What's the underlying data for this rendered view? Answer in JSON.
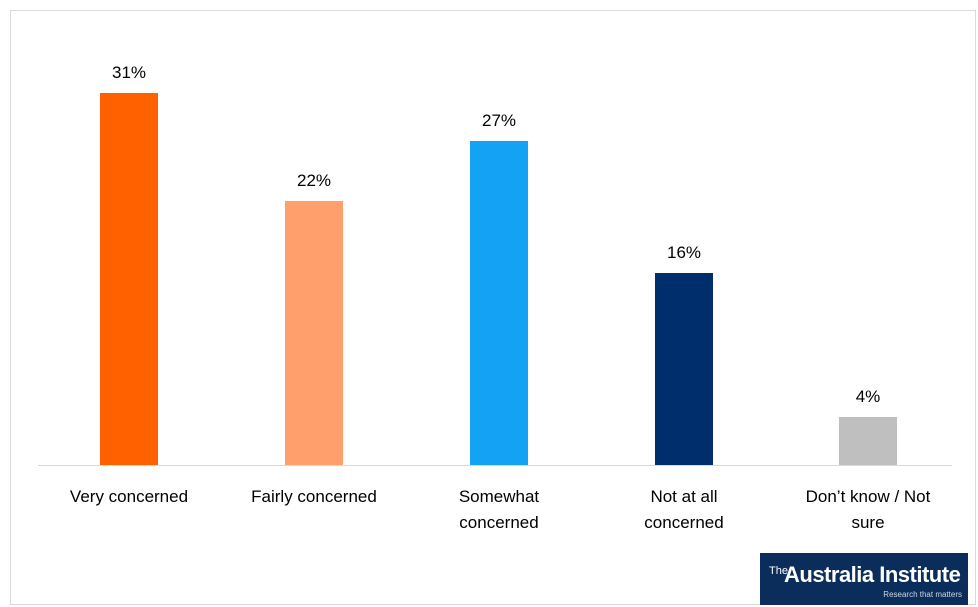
{
  "chart_data": {
    "type": "bar",
    "categories": [
      [
        "Very concerned"
      ],
      [
        "Fairly concerned"
      ],
      [
        "Somewhat",
        "concerned"
      ],
      [
        "Not at all",
        "concerned"
      ],
      [
        "Don’t know / Not",
        "sure"
      ]
    ],
    "values": [
      31,
      22,
      27,
      16,
      4
    ],
    "value_labels": [
      "31%",
      "22%",
      "27%",
      "16%",
      "4%"
    ],
    "colors": [
      "#ff6000",
      "#ffa06c",
      "#14a2f5",
      "#002d6b",
      "#bfbfbf"
    ],
    "title": "",
    "xlabel": "",
    "ylabel": "",
    "ylim": [
      0,
      31
    ],
    "grid": false,
    "legend": "none"
  },
  "logo": {
    "prefix": "The",
    "name": "Australia Institute",
    "tagline": "Research that matters"
  }
}
